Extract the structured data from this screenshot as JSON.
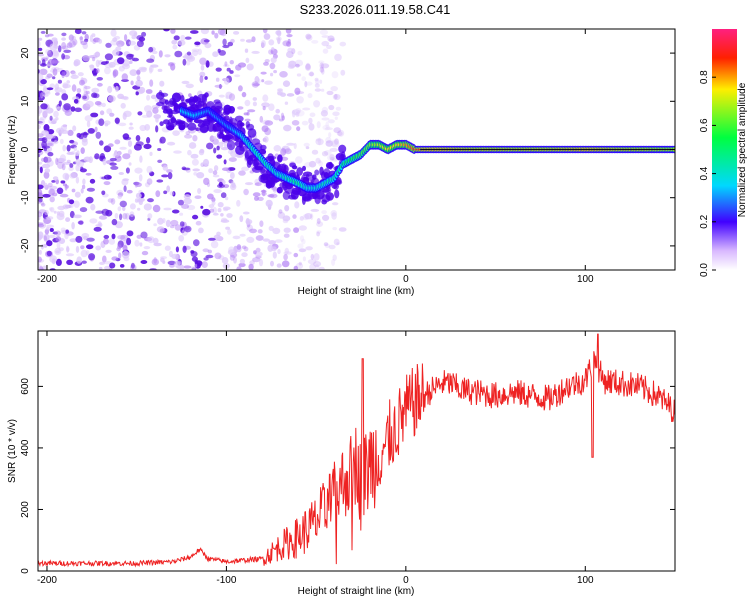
{
  "title": "S233.2026.011.19.58.C41",
  "chart_data": [
    {
      "type": "heatmap",
      "name": "spectrogram",
      "xlabel": "Height of straight line (km)",
      "ylabel": "Frequency (Hz)",
      "xlim": [
        -205,
        150
      ],
      "ylim": [
        -25,
        25
      ],
      "xticks": [
        -200,
        -100,
        0,
        100
      ],
      "yticks": [
        -20,
        -10,
        0,
        10,
        20
      ],
      "colorbar": {
        "label": "Normalized spectral amplitude",
        "range": [
          0,
          1
        ],
        "ticks": [
          0.0,
          0.2,
          0.4,
          0.6,
          0.8
        ]
      },
      "ridge": {
        "x": [
          -125,
          -118,
          -110,
          -100,
          -92,
          -85,
          -78,
          -72,
          -66,
          -60,
          -55,
          -50,
          -45,
          -40,
          -35,
          -30,
          -25,
          -20,
          -15,
          -10,
          -5,
          0,
          5,
          10,
          20,
          40,
          60,
          80,
          100,
          120,
          150
        ],
        "y": [
          8,
          7,
          8,
          5,
          3,
          0,
          -3,
          -5,
          -6,
          -7,
          -8,
          -8,
          -7,
          -6,
          -3,
          -2,
          -1,
          1,
          1,
          0,
          1,
          1,
          0,
          0,
          0,
          0,
          0,
          0,
          0,
          0,
          0
        ],
        "amplitude": [
          0.35,
          0.35,
          0.3,
          0.3,
          0.35,
          0.45,
          0.45,
          0.4,
          0.45,
          0.5,
          0.4,
          0.4,
          0.45,
          0.45,
          0.5,
          0.55,
          0.6,
          0.65,
          0.7,
          0.75,
          0.75,
          0.8,
          0.85,
          0.9,
          0.9,
          0.85,
          0.85,
          0.85,
          0.9,
          0.85,
          0.8
        ]
      }
    },
    {
      "type": "line",
      "name": "snr",
      "xlabel": "Height of straight line (km)",
      "ylabel": "SNR (10 * v/v)",
      "xlim": [
        -205,
        150
      ],
      "ylim": [
        0,
        780
      ],
      "xticks": [
        -200,
        -100,
        0,
        100
      ],
      "yticks": [
        0,
        200,
        400,
        600
      ],
      "series": [
        {
          "name": "SNR",
          "color": "#ee2222",
          "x": [
            -205,
            -190,
            -170,
            -150,
            -130,
            -120,
            -115,
            -110,
            -100,
            -90,
            -80,
            -70,
            -60,
            -50,
            -45,
            -40,
            -35,
            -30,
            -27,
            -25,
            -20,
            -15,
            -10,
            -5,
            0,
            5,
            10,
            15,
            20,
            25,
            30,
            40,
            50,
            60,
            70,
            80,
            90,
            100,
            105,
            110,
            120,
            130,
            140,
            150
          ],
          "y": [
            25,
            25,
            25,
            25,
            30,
            45,
            70,
            40,
            30,
            35,
            40,
            80,
            110,
            160,
            200,
            240,
            290,
            320,
            360,
            270,
            350,
            380,
            430,
            470,
            520,
            550,
            570,
            590,
            610,
            610,
            590,
            580,
            570,
            580,
            570,
            560,
            600,
            620,
            690,
            620,
            610,
            600,
            570,
            520
          ]
        }
      ]
    }
  ]
}
